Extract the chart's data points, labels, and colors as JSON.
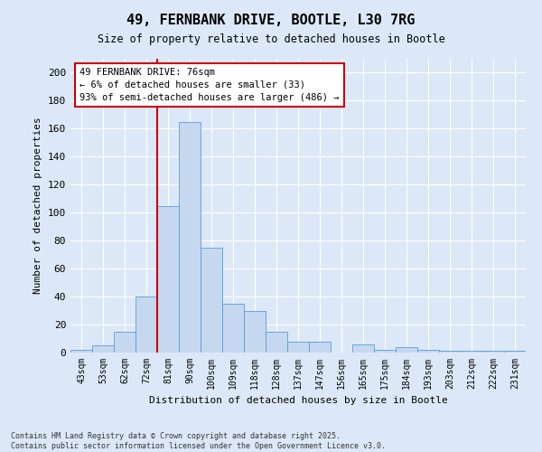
{
  "title_line1": "49, FERNBANK DRIVE, BOOTLE, L30 7RG",
  "title_line2": "Size of property relative to detached houses in Bootle",
  "xlabel": "Distribution of detached houses by size in Bootle",
  "ylabel": "Number of detached properties",
  "bin_labels": [
    "43sqm",
    "53sqm",
    "62sqm",
    "72sqm",
    "81sqm",
    "90sqm",
    "100sqm",
    "109sqm",
    "118sqm",
    "128sqm",
    "137sqm",
    "147sqm",
    "156sqm",
    "165sqm",
    "175sqm",
    "184sqm",
    "193sqm",
    "203sqm",
    "212sqm",
    "222sqm",
    "231sqm"
  ],
  "bar_heights": [
    2,
    5,
    15,
    40,
    105,
    165,
    75,
    35,
    30,
    15,
    8,
    8,
    0,
    6,
    2,
    4,
    2,
    1,
    1,
    1,
    1
  ],
  "bar_color": "#c5d8f0",
  "bar_edge_color": "#5b9bd5",
  "vline_color": "#cc0000",
  "annotation_text": "49 FERNBANK DRIVE: 76sqm\n← 6% of detached houses are smaller (33)\n93% of semi-detached houses are larger (486) →",
  "annotation_box_facecolor": "#ffffff",
  "annotation_box_edgecolor": "#cc0000",
  "ylim": [
    0,
    210
  ],
  "yticks": [
    0,
    20,
    40,
    60,
    80,
    100,
    120,
    140,
    160,
    180,
    200
  ],
  "background_color": "#dce8f8",
  "fig_background_color": "#dce8f8",
  "grid_color": "#ffffff",
  "footer_line1": "Contains HM Land Registry data © Crown copyright and database right 2025.",
  "footer_line2": "Contains public sector information licensed under the Open Government Licence v3.0.",
  "vline_x_val": 76
}
